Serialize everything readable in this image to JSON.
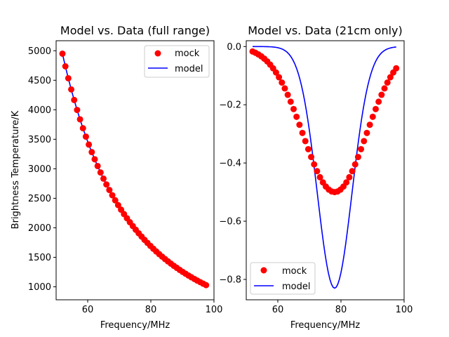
{
  "figure": {
    "background": "#ffffff"
  },
  "chart_data": [
    {
      "type": "line",
      "title": "Model vs. Data (full range)",
      "xlabel": "Frequency/MHz",
      "ylabel": "Brightness Temperature/K",
      "xlim": [
        50,
        100
      ],
      "ylim": [
        780,
        5170
      ],
      "xticks": [
        60,
        80,
        100
      ],
      "yticks": [
        1000,
        1500,
        2000,
        2500,
        3000,
        3500,
        4000,
        4500,
        5000
      ],
      "grid": false,
      "legend": "top-right",
      "series": [
        {
          "name": "mock",
          "kind": "scatter",
          "color": "#ff0000",
          "formula": "power_law",
          "amplitude": 4950,
          "ref_freq": 52,
          "index": -2.5,
          "x_start": 52,
          "x_end": 97.5,
          "count": 50
        },
        {
          "name": "model",
          "kind": "line",
          "color": "#0000ff",
          "formula": "power_law",
          "amplitude": 4950,
          "ref_freq": 52,
          "index": -2.5,
          "x_start": 52,
          "x_end": 97.5,
          "count": 92
        }
      ]
    },
    {
      "type": "line",
      "title": "Model vs. Data (21cm only)",
      "xlabel": "Frequency/MHz",
      "ylabel": "",
      "xlim": [
        50,
        100
      ],
      "ylim": [
        -0.87,
        0.02
      ],
      "xticks": [
        60,
        80,
        100
      ],
      "yticks": [
        0.0,
        -0.2,
        -0.4,
        -0.6,
        -0.8
      ],
      "ytick_labels": [
        "0.0",
        "−0.2",
        "−0.4",
        "−0.6",
        "−0.8"
      ],
      "grid": false,
      "legend": "bottom-left",
      "series": [
        {
          "name": "mock",
          "kind": "scatter",
          "color": "#ff0000",
          "formula": "gaussian",
          "amplitude": -0.5,
          "center": 78,
          "sigma": 10,
          "x_start": 52,
          "x_end": 97.5,
          "count": 50
        },
        {
          "name": "model",
          "kind": "line",
          "color": "#0000ff",
          "formula": "gaussian",
          "amplitude": -0.83,
          "center": 78,
          "sigma": 5.5,
          "x_start": 52,
          "x_end": 97.5,
          "count": 92
        }
      ]
    }
  ]
}
